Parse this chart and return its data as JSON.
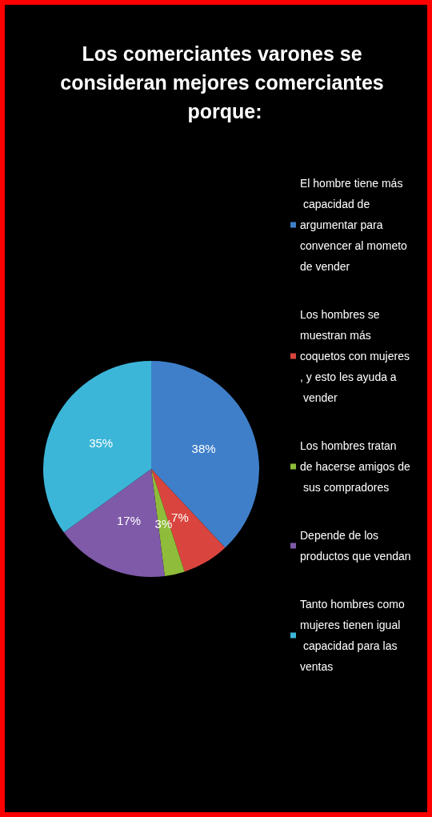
{
  "chart_data": {
    "type": "pie",
    "title": "Los comerciantes varones se consideran mejores comerciantes porque:",
    "categories": [
      "El hombre tiene más capacidad de argumentar para convencer al mometo de vender",
      "Los hombres se muestran más coquetos con mujeres, y esto les ayuda a vender",
      "Los hombres tratan de hacerse amigos de sus compradores",
      "Depende de los productos que vendan",
      "Tanto hombres como mujeres tienen igual capacidad para las ventas"
    ],
    "values": [
      38,
      7,
      3,
      17,
      35
    ],
    "value_labels": [
      "38%",
      "7%",
      "3%",
      "17%",
      "35%"
    ],
    "colors": [
      "#3f7fc9",
      "#d9453e",
      "#8fbc3a",
      "#7f5aa8",
      "#3cb6d8"
    ],
    "legend": "right"
  }
}
